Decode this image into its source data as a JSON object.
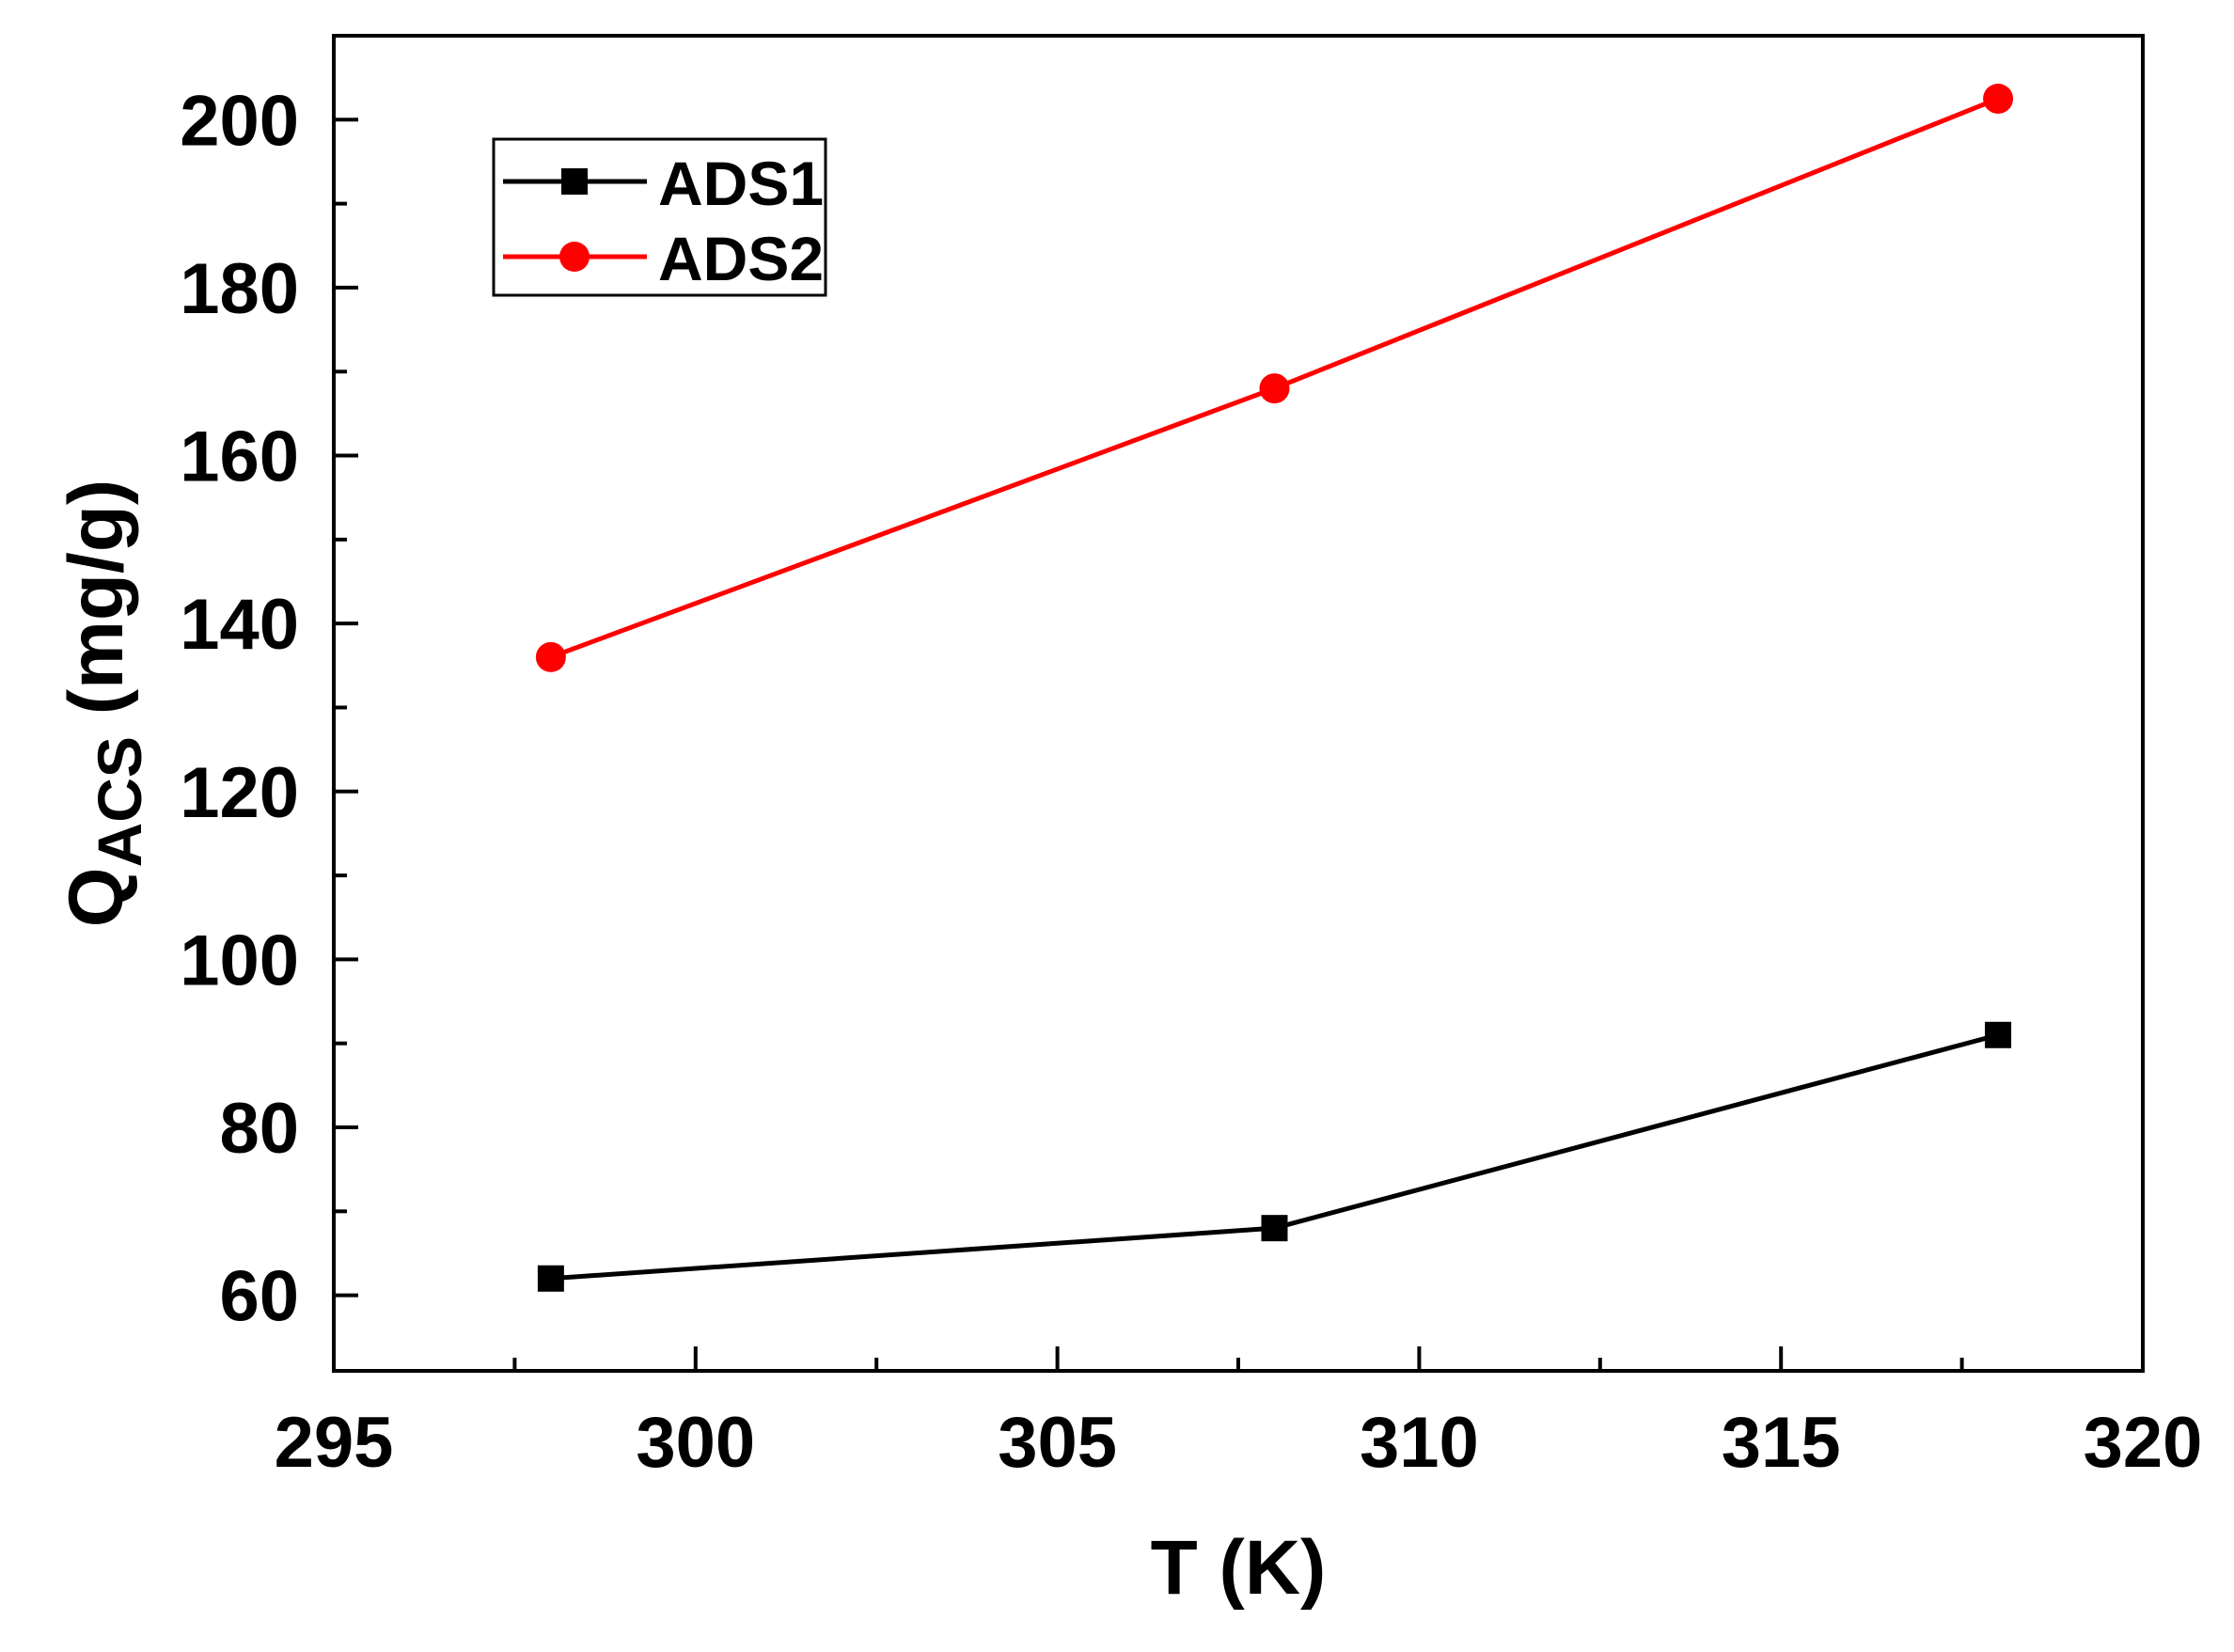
{
  "chart_data": {
    "type": "line",
    "title": "",
    "xlabel": "T (K)",
    "ylabel": {
      "main": "Q",
      "sub": "ACS",
      "unit": " (mg/g)"
    },
    "xlim": [
      295,
      320
    ],
    "ylim": [
      51,
      210
    ],
    "x_ticks": [
      "295",
      "300",
      "305",
      "310",
      "315",
      "320"
    ],
    "y_ticks": [
      "60",
      "80",
      "100",
      "120",
      "140",
      "160",
      "180",
      "200"
    ],
    "x_tick_values": [
      295,
      300,
      305,
      310,
      315,
      320
    ],
    "y_tick_values": [
      60,
      80,
      100,
      120,
      140,
      160,
      180,
      200
    ],
    "grid": false,
    "legend_position": "top-left",
    "x": [
      298,
      308,
      318
    ],
    "series": [
      {
        "name": "ADS1",
        "values": [
          62,
          68,
          91
        ],
        "color": "#000000",
        "marker": "square"
      },
      {
        "name": "ADS2",
        "values": [
          136,
          168,
          202.5
        ],
        "color": "#ff0000",
        "marker": "circle"
      }
    ]
  }
}
